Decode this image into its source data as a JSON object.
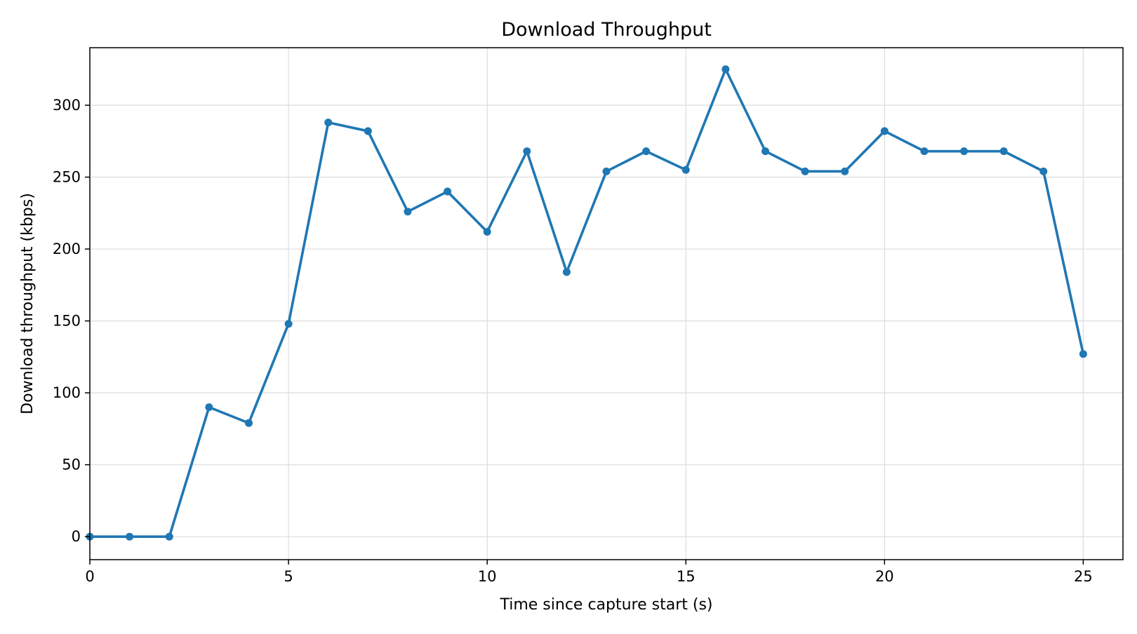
{
  "chart_data": {
    "type": "line",
    "title": "Download Throughput",
    "xlabel": "Time since capture start (s)",
    "ylabel": "Download throughput (kbps)",
    "xlim": [
      0,
      26
    ],
    "ylim": [
      -16,
      340
    ],
    "x_ticks": [
      0,
      5,
      10,
      15,
      20,
      25
    ],
    "y_ticks": [
      0,
      50,
      100,
      150,
      200,
      250,
      300
    ],
    "grid": true,
    "legend": "none",
    "series": [
      {
        "color": "#1f77b4",
        "marker": "circle",
        "x": [
          0,
          1,
          2,
          3,
          4,
          5,
          6,
          7,
          8,
          9,
          10,
          11,
          12,
          13,
          14,
          15,
          16,
          17,
          18,
          19,
          20,
          21,
          22,
          23,
          24,
          25
        ],
        "y": [
          0,
          0,
          0,
          90,
          79,
          148,
          288,
          282,
          226,
          240,
          212,
          268,
          184,
          254,
          268,
          255,
          325,
          268,
          254,
          254,
          282,
          268,
          268,
          268,
          254,
          127
        ]
      }
    ]
  }
}
